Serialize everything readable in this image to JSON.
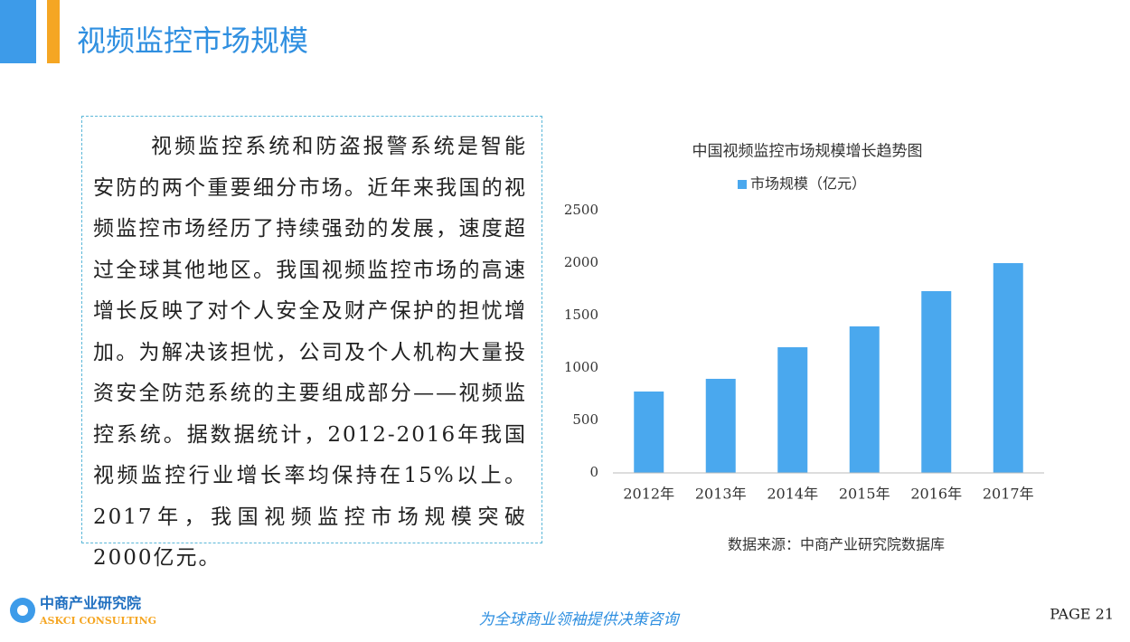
{
  "header": {
    "title": "视频监控市场规模"
  },
  "body": {
    "paragraph": "视频监控系统和防盗报警系统是智能安防的两个重要细分市场。近年来我国的视频监控市场经历了持续强劲的发展，速度超过全球其他地区。我国视频监控市场的高速增长反映了对个人安全及财产保护的担忧增加。为解决该担忧，公司及个人机构大量投资安全防范系统的主要组成部分——视频监控系统。据数据统计，2012-2016年我国视频监控行业增长率均保持在15%以上。2017年，我国视频监控市场规模突破2000亿元。"
  },
  "chart_data": {
    "type": "bar",
    "title": "中国视频监控市场规模增长趋势图",
    "categories": [
      "2012年",
      "2013年",
      "2014年",
      "2015年",
      "2016年",
      "2017年"
    ],
    "series": [
      {
        "name": "市场规模（亿元）",
        "color": "#4aa8ee",
        "values": [
          776,
          897,
          1198,
          1397,
          1733,
          2000
        ]
      }
    ],
    "ylim": [
      0,
      2500
    ],
    "yticks": [
      0,
      500,
      1000,
      1500,
      2000,
      2500
    ],
    "grid": false,
    "source": "数据来源：中商产业研究院数据库"
  },
  "footer": {
    "logo_cn": "中商产业研究院",
    "logo_en": "ASKCI CONSULTING",
    "slogan": "为全球商业领袖提供决策咨询",
    "page": "PAGE  21"
  }
}
